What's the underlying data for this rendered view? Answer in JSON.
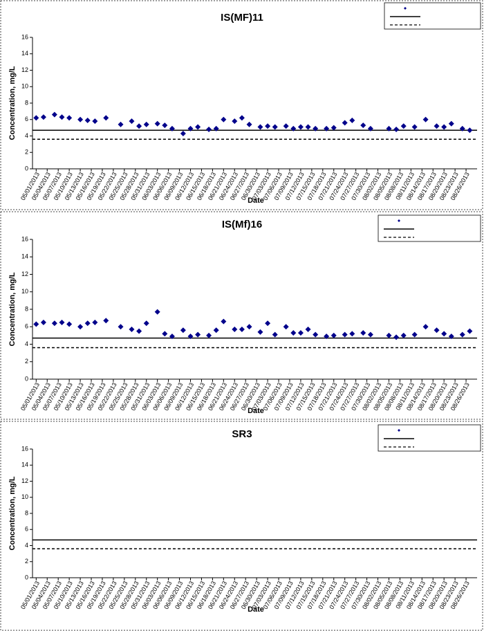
{
  "chart_data": [
    {
      "type": "scatter",
      "title": "IS(MF)11",
      "ylabel": "Concentration, mg/L",
      "xlabel": "Date",
      "color": "#00008b",
      "x": [
        "05/01/2013",
        "05/03/2013",
        "05/06/2013",
        "05/08/2013",
        "05/10/2013",
        "05/13/2013",
        "05/15/2013",
        "05/17/2013",
        "05/20/2013",
        "05/24/2013",
        "05/27/2013",
        "05/29/2013",
        "05/31/2013",
        "06/03/2013",
        "06/05/2013",
        "06/07/2013",
        "06/10/2013",
        "06/12/2013",
        "06/14/2013",
        "06/17/2013",
        "06/19/2013",
        "06/21/2013",
        "06/24/2013",
        "06/26/2013",
        "06/28/2013",
        "07/01/2013",
        "07/03/2013",
        "07/05/2013",
        "07/08/2013",
        "07/10/2013",
        "07/12/2013",
        "07/14/2013",
        "07/16/2013",
        "07/19/2013",
        "07/21/2013",
        "07/24/2013",
        "07/26/2013",
        "07/29/2013",
        "07/31/2013",
        "08/05/2013",
        "08/07/2013",
        "08/09/2013",
        "08/12/2013",
        "08/15/2013",
        "08/18/2013",
        "08/20/2013",
        "08/22/2013",
        "08/25/2013",
        "08/27/2013"
      ],
      "values": [
        6.2,
        6.3,
        6.6,
        6.3,
        6.2,
        6.0,
        5.9,
        5.8,
        6.2,
        5.4,
        5.8,
        5.2,
        5.4,
        5.5,
        5.3,
        4.9,
        4.3,
        4.9,
        5.1,
        4.8,
        4.9,
        6.0,
        5.8,
        6.2,
        5.4,
        5.1,
        5.2,
        5.1,
        5.2,
        4.9,
        5.1,
        5.1,
        4.9,
        4.9,
        5.0,
        5.6,
        5.9,
        5.3,
        4.9,
        4.9,
        4.8,
        5.2,
        5.1,
        6.0,
        5.2,
        5.1,
        5.5,
        4.9,
        4.7
      ],
      "hlines": [
        {
          "value": 4.7,
          "dashed": false
        },
        {
          "value": 3.6,
          "dashed": true
        }
      ],
      "xlim": [
        "04/30/2013",
        "08/29/2013"
      ],
      "xticks": [
        "05/01/2013",
        "05/04/2013",
        "05/07/2013",
        "05/10/2013",
        "05/13/2013",
        "05/16/2013",
        "05/19/2013",
        "05/22/2013",
        "05/25/2013",
        "05/28/2013",
        "05/31/2013",
        "06/03/2013",
        "06/06/2013",
        "06/09/2013",
        "06/12/2013",
        "06/15/2013",
        "06/18/2013",
        "06/21/2013",
        "06/24/2013",
        "06/27/2013",
        "06/30/2013",
        "07/03/2013",
        "07/06/2013",
        "07/09/2013",
        "07/12/2013",
        "07/15/2013",
        "07/18/2013",
        "07/21/2013",
        "07/24/2013",
        "07/27/2013",
        "07/30/2013",
        "08/02/2013",
        "08/05/2013",
        "08/08/2013",
        "08/11/2013",
        "08/14/2013",
        "08/17/2013",
        "08/20/2013",
        "08/23/2013",
        "08/26/2013"
      ],
      "ylim": [
        0,
        16
      ],
      "yticks": [
        0,
        2,
        4,
        6,
        8,
        10,
        12,
        14,
        16
      ]
    },
    {
      "type": "scatter",
      "title": "IS(Mf)16",
      "ylabel": "Concentration, mg/L",
      "xlabel": "Date",
      "color": "#00008b",
      "x": [
        "05/01/2013",
        "05/03/2013",
        "05/06/2013",
        "05/08/2013",
        "05/10/2013",
        "05/13/2013",
        "05/15/2013",
        "05/17/2013",
        "05/20/2013",
        "05/24/2013",
        "05/27/2013",
        "05/29/2013",
        "05/31/2013",
        "06/03/2013",
        "06/05/2013",
        "06/07/2013",
        "06/10/2013",
        "06/12/2013",
        "06/14/2013",
        "06/17/2013",
        "06/19/2013",
        "06/21/2013",
        "06/24/2013",
        "06/26/2013",
        "06/28/2013",
        "07/01/2013",
        "07/03/2013",
        "07/05/2013",
        "07/08/2013",
        "07/10/2013",
        "07/12/2013",
        "07/14/2013",
        "07/16/2013",
        "07/19/2013",
        "07/21/2013",
        "07/24/2013",
        "07/26/2013",
        "07/29/2013",
        "07/31/2013",
        "08/05/2013",
        "08/07/2013",
        "08/09/2013",
        "08/12/2013",
        "08/15/2013",
        "08/18/2013",
        "08/20/2013",
        "08/22/2013",
        "08/25/2013",
        "08/27/2013"
      ],
      "values": [
        6.3,
        6.5,
        6.4,
        6.5,
        6.3,
        6.0,
        6.4,
        6.5,
        6.7,
        6.0,
        5.7,
        5.5,
        6.4,
        7.7,
        5.2,
        4.9,
        5.6,
        4.9,
        5.1,
        5.0,
        5.6,
        6.6,
        5.7,
        5.7,
        6.0,
        5.4,
        6.4,
        5.1,
        6.0,
        5.3,
        5.3,
        5.7,
        5.1,
        4.9,
        5.0,
        5.1,
        5.2,
        5.3,
        5.1,
        5.0,
        4.8,
        5.0,
        5.1,
        6.0,
        5.6,
        5.2,
        4.9,
        5.1,
        5.5
      ],
      "hlines": [
        {
          "value": 4.7,
          "dashed": false
        },
        {
          "value": 3.6,
          "dashed": true
        }
      ],
      "xlim": [
        "04/30/2013",
        "08/29/2013"
      ],
      "xticks": [
        "05/01/2013",
        "05/04/2013",
        "05/07/2013",
        "05/10/2013",
        "05/13/2013",
        "05/16/2013",
        "05/19/2013",
        "05/22/2013",
        "05/25/2013",
        "05/28/2013",
        "05/31/2013",
        "06/03/2013",
        "06/06/2013",
        "06/09/2013",
        "06/12/2013",
        "06/15/2013",
        "06/18/2013",
        "06/21/2013",
        "06/24/2013",
        "06/27/2013",
        "06/30/2013",
        "07/03/2013",
        "07/06/2013",
        "07/09/2013",
        "07/12/2013",
        "07/15/2013",
        "07/18/2013",
        "07/21/2013",
        "07/24/2013",
        "07/27/2013",
        "07/30/2013",
        "08/02/2013",
        "08/05/2013",
        "08/08/2013",
        "08/11/2013",
        "08/14/2013",
        "08/17/2013",
        "08/20/2013",
        "08/23/2013",
        "08/26/2013"
      ],
      "ylim": [
        0,
        16
      ],
      "yticks": [
        0,
        2,
        4,
        6,
        8,
        10,
        12,
        14,
        16
      ]
    },
    {
      "type": "scatter",
      "title": "SR3",
      "ylabel": "Concentration, mg/L",
      "xlabel": "Date",
      "color": "#00008b",
      "x": [],
      "values": [],
      "hlines": [
        {
          "value": 4.7,
          "dashed": false
        },
        {
          "value": 3.6,
          "dashed": true
        }
      ],
      "xlim": [
        "04/30/2013",
        "08/29/2013"
      ],
      "xticks": [
        "05/01/2013",
        "05/04/2013",
        "05/07/2013",
        "05/10/2013",
        "05/13/2013",
        "05/16/2013",
        "05/19/2013",
        "05/22/2013",
        "05/25/2013",
        "05/28/2013",
        "05/31/2013",
        "06/03/2013",
        "06/06/2013",
        "06/09/2013",
        "06/12/2013",
        "06/15/2013",
        "06/18/2013",
        "06/21/2013",
        "06/24/2013",
        "06/27/2013",
        "06/30/2013",
        "07/03/2013",
        "07/06/2013",
        "07/09/2013",
        "07/12/2013",
        "07/15/2013",
        "07/18/2013",
        "07/21/2013",
        "07/24/2013",
        "07/27/2013",
        "07/30/2013",
        "08/02/2013",
        "08/05/2013",
        "08/08/2013",
        "08/11/2013",
        "08/14/2013",
        "08/17/2013",
        "08/20/2013",
        "08/23/2013",
        "08/26/2013"
      ],
      "ylim": [
        0,
        16
      ],
      "yticks": [
        0,
        2,
        4,
        6,
        8,
        10,
        12,
        14,
        16
      ]
    }
  ]
}
